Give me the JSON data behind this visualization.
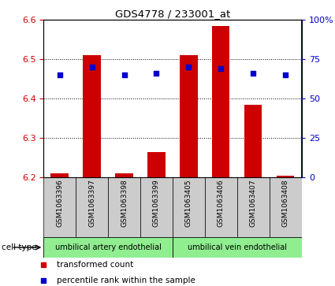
{
  "title": "GDS4778 / 233001_at",
  "samples": [
    "GSM1063396",
    "GSM1063397",
    "GSM1063398",
    "GSM1063399",
    "GSM1063405",
    "GSM1063406",
    "GSM1063407",
    "GSM1063408"
  ],
  "bar_values": [
    6.21,
    6.51,
    6.21,
    6.265,
    6.51,
    6.585,
    6.385,
    6.205
  ],
  "bar_base": 6.2,
  "dot_percentile": [
    65,
    70,
    65,
    66,
    70,
    69,
    66,
    65
  ],
  "ylim_left": [
    6.2,
    6.6
  ],
  "ylim_right": [
    0,
    100
  ],
  "yticks_left": [
    6.2,
    6.3,
    6.4,
    6.5,
    6.6
  ],
  "yticks_right": [
    0,
    25,
    50,
    75,
    100
  ],
  "ytick_labels_right": [
    "0",
    "25",
    "50",
    "75",
    "100%"
  ],
  "bar_color": "#cc0000",
  "dot_color": "#0000cc",
  "cell_type_groups": [
    {
      "label": "umbilical artery endothelial",
      "start": 0,
      "end": 3,
      "color": "#90ee90"
    },
    {
      "label": "umbilical vein endothelial",
      "start": 4,
      "end": 7,
      "color": "#90ee90"
    }
  ],
  "cell_type_label": "cell type",
  "legend_bar_label": "transformed count",
  "legend_dot_label": "percentile rank within the sample",
  "bg_color": "#ffffff",
  "tick_label_color_left": "#cc0000",
  "tick_label_color_right": "#0000cc",
  "bar_width": 0.55,
  "sample_box_color": "#cccccc",
  "grid_yticks": [
    6.3,
    6.4,
    6.5
  ]
}
